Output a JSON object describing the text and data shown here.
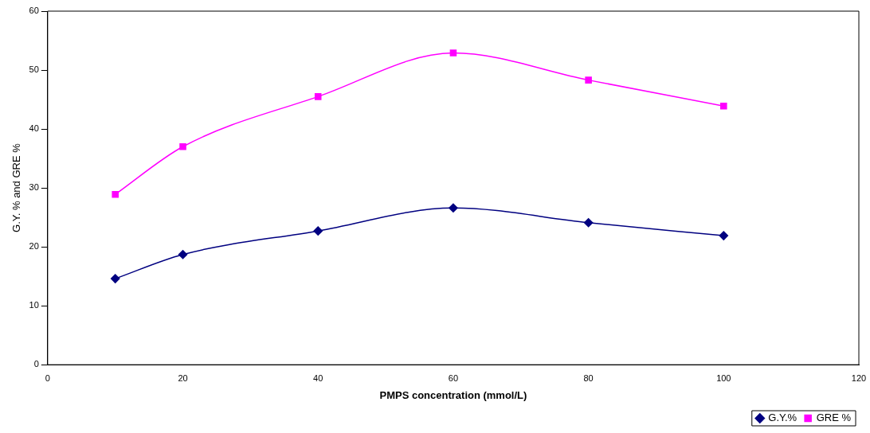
{
  "chart_data": {
    "type": "line",
    "xlabel": "PMPS concentration (mmol/L)",
    "ylabel": "G.Y. % and GRE %",
    "x": [
      10,
      20,
      40,
      60,
      80,
      100
    ],
    "series": [
      {
        "name": "G.Y.%",
        "color": "#000080",
        "marker": "diamond",
        "values": [
          14.6,
          18.7,
          22.7,
          26.6,
          24.1,
          21.9
        ]
      },
      {
        "name": "GRE %",
        "color": "#ff00ff",
        "marker": "square",
        "values": [
          28.9,
          37.0,
          45.5,
          52.9,
          48.3,
          43.9
        ]
      }
    ],
    "xlim": [
      0,
      120
    ],
    "xticks": [
      0,
      20,
      40,
      60,
      80,
      100,
      120
    ],
    "ylim": [
      0,
      60
    ],
    "yticks": [
      0,
      10,
      20,
      30,
      40,
      50,
      60
    ],
    "grid": false,
    "legend": "bottom right",
    "line_style": "solid"
  }
}
